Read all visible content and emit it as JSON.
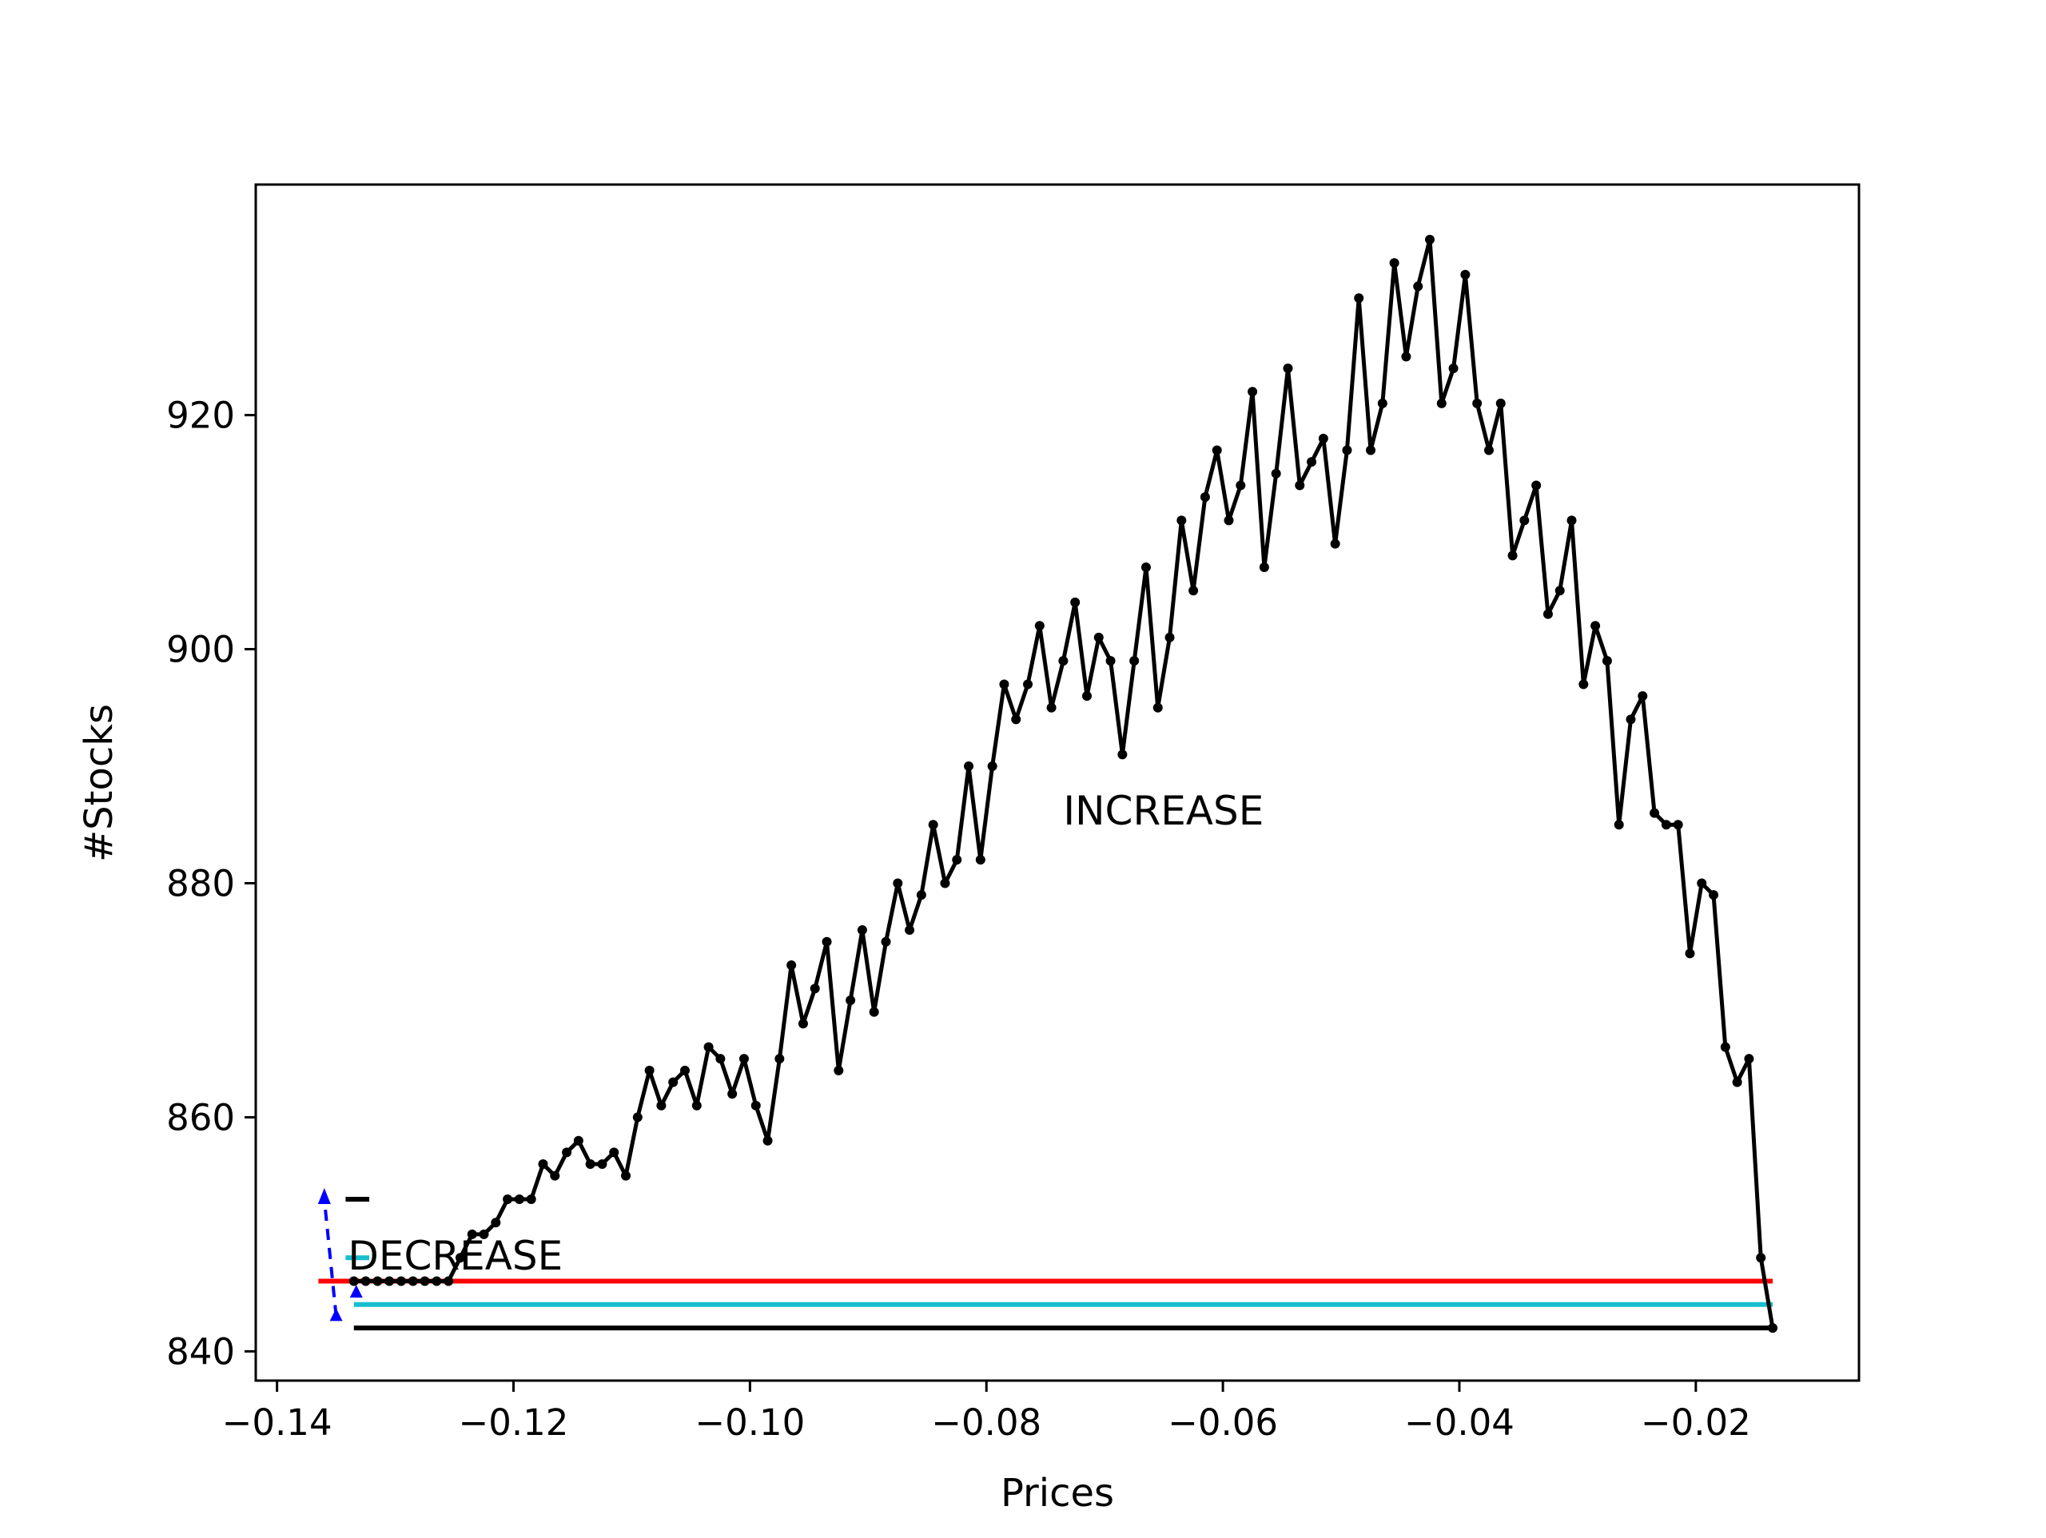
{
  "chart_data": {
    "type": "line",
    "xlabel": "Prices",
    "ylabel": "#Stocks",
    "xlim": [
      -0.1418,
      -0.0062
    ],
    "ylim": [
      837.5,
      939.7
    ],
    "xticks": [
      -0.14,
      -0.12,
      -0.1,
      -0.08,
      -0.06,
      -0.04,
      -0.02
    ],
    "xtick_labels": [
      "−0.14",
      "−0.12",
      "−0.10",
      "−0.08",
      "−0.06",
      "−0.04",
      "−0.02"
    ],
    "yticks": [
      840,
      860,
      880,
      900,
      920
    ],
    "ytick_labels": [
      "840",
      "860",
      "880",
      "900",
      "920"
    ],
    "grid": false,
    "colors": {
      "series": "#000000",
      "red_line": "#ff0000",
      "cyan_line": "#17becf",
      "arrow": "#0000ff"
    },
    "series": [
      {
        "color": "#000000",
        "marker": "dot",
        "x": [
          -0.1335,
          -0.1325,
          -0.1315,
          -0.1305,
          -0.1295,
          -0.1285,
          -0.1275,
          -0.1265,
          -0.1255,
          -0.1245,
          -0.1235,
          -0.1225,
          -0.1215,
          -0.1205,
          -0.1195,
          -0.1185,
          -0.1175,
          -0.1165,
          -0.1155,
          -0.1145,
          -0.1135,
          -0.1125,
          -0.1115,
          -0.1105,
          -0.1095,
          -0.1085,
          -0.1075,
          -0.1065,
          -0.1055,
          -0.1045,
          -0.1035,
          -0.1025,
          -0.1015,
          -0.1005,
          -0.0995,
          -0.0985,
          -0.0975,
          -0.0965,
          -0.0955,
          -0.0945,
          -0.0935,
          -0.0925,
          -0.0915,
          -0.0905,
          -0.0895,
          -0.0885,
          -0.0875,
          -0.0865,
          -0.0855,
          -0.0845,
          -0.0835,
          -0.0825,
          -0.0815,
          -0.0805,
          -0.0795,
          -0.0785,
          -0.0775,
          -0.0765,
          -0.0755,
          -0.0745,
          -0.0735,
          -0.0725,
          -0.0715,
          -0.0705,
          -0.0695,
          -0.0685,
          -0.0675,
          -0.0665,
          -0.0655,
          -0.0645,
          -0.0635,
          -0.0625,
          -0.0615,
          -0.0605,
          -0.0595,
          -0.0585,
          -0.0575,
          -0.0565,
          -0.0555,
          -0.0545,
          -0.0535,
          -0.0525,
          -0.0515,
          -0.0505,
          -0.0495,
          -0.0485,
          -0.0475,
          -0.0465,
          -0.0455,
          -0.0445,
          -0.0435,
          -0.0425,
          -0.0415,
          -0.0405,
          -0.0395,
          -0.0385,
          -0.0375,
          -0.0365,
          -0.0355,
          -0.0345,
          -0.0335,
          -0.0325,
          -0.0315,
          -0.0305,
          -0.0295,
          -0.0285,
          -0.0275,
          -0.0265,
          -0.0255,
          -0.0245,
          -0.0235,
          -0.0225,
          -0.0215,
          -0.0205,
          -0.0195,
          -0.0185,
          -0.0175,
          -0.0165,
          -0.0155,
          -0.0145,
          -0.0135
        ],
        "y": [
          846,
          846,
          846,
          846,
          846,
          846,
          846,
          846,
          846,
          848,
          850,
          850,
          851,
          853,
          853,
          853,
          856,
          855,
          857,
          858,
          856,
          856,
          857,
          855,
          860,
          864,
          861,
          863,
          864,
          861,
          866,
          865,
          862,
          865,
          861,
          858,
          865,
          873,
          868,
          871,
          875,
          864,
          870,
          876,
          869,
          875,
          880,
          876,
          879,
          885,
          880,
          882,
          890,
          882,
          890,
          897,
          894,
          897,
          902,
          895,
          899,
          904,
          896,
          901,
          899,
          891,
          899,
          907,
          895,
          901,
          911,
          905,
          913,
          917,
          911,
          914,
          922,
          907,
          915,
          924,
          914,
          916,
          918,
          909,
          917,
          930,
          917,
          921,
          933,
          925,
          931,
          935,
          921,
          924,
          932,
          921,
          917,
          921,
          908,
          911,
          914,
          903,
          905,
          911,
          897,
          902,
          899,
          885,
          894,
          896,
          886,
          885,
          885,
          874,
          880,
          879,
          866,
          863,
          865,
          848,
          842
        ]
      }
    ],
    "hlines": [
      {
        "y": 846,
        "x_range": [
          -0.1365,
          -0.0135
        ],
        "color": "#ff0000"
      },
      {
        "y": 844,
        "x_range": [
          -0.1335,
          -0.0135
        ],
        "color": "#17becf"
      },
      {
        "y": 842,
        "x_range": [
          -0.1335,
          -0.0135
        ],
        "color": "#000000"
      }
    ],
    "small_segments": [
      {
        "y": 853,
        "x_range": [
          -0.1342,
          -0.1322
        ],
        "color": "#000000"
      },
      {
        "y": 848,
        "x_range": [
          -0.1342,
          -0.1322
        ],
        "color": "#17becf"
      }
    ],
    "arrow": {
      "color": "#0000ff",
      "style": "dashed",
      "points": [
        [
          -0.135,
          843
        ],
        [
          -0.136,
          853
        ]
      ],
      "marker_points": [
        [
          -0.135,
          843
        ],
        [
          -0.1333,
          845
        ]
      ]
    },
    "annotations": [
      {
        "text": "INCREASE",
        "x": -0.0735,
        "y": 885
      },
      {
        "text": "DECREASE",
        "x": -0.134,
        "y": 847
      }
    ]
  }
}
